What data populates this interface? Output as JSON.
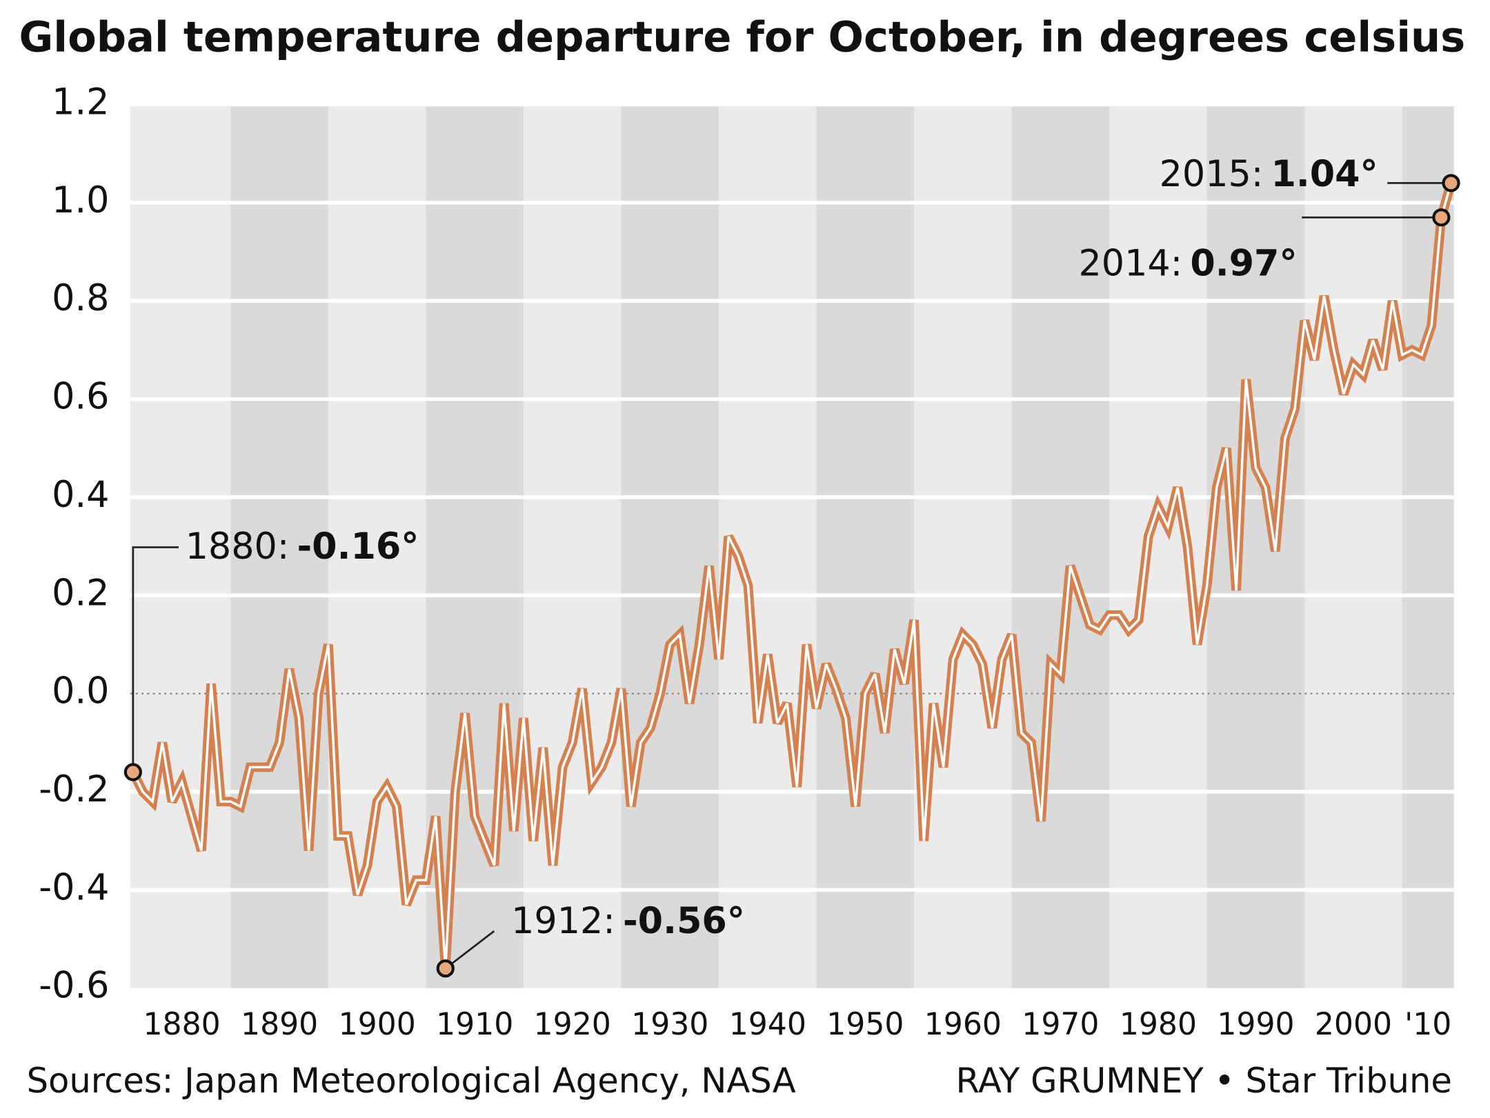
{
  "chart_data": {
    "type": "line",
    "title": "Global temperature departure for October, in degrees celsius",
    "source": "Sources:  Japan Meteorological Agency, NASA",
    "credit": "RAY GRUMNEY • Star Tribune",
    "x": [
      1880,
      1881,
      1882,
      1883,
      1884,
      1885,
      1886,
      1887,
      1888,
      1889,
      1890,
      1891,
      1892,
      1893,
      1894,
      1895,
      1896,
      1897,
      1898,
      1899,
      1900,
      1901,
      1902,
      1903,
      1904,
      1905,
      1906,
      1907,
      1908,
      1909,
      1910,
      1911,
      1912,
      1913,
      1914,
      1915,
      1916,
      1917,
      1918,
      1919,
      1920,
      1921,
      1922,
      1923,
      1924,
      1925,
      1926,
      1927,
      1928,
      1929,
      1930,
      1931,
      1932,
      1933,
      1934,
      1935,
      1936,
      1937,
      1938,
      1939,
      1940,
      1941,
      1942,
      1943,
      1944,
      1945,
      1946,
      1947,
      1948,
      1949,
      1950,
      1951,
      1952,
      1953,
      1954,
      1955,
      1956,
      1957,
      1958,
      1959,
      1960,
      1961,
      1962,
      1963,
      1964,
      1965,
      1966,
      1967,
      1968,
      1969,
      1970,
      1971,
      1972,
      1973,
      1974,
      1975,
      1976,
      1977,
      1978,
      1979,
      1980,
      1981,
      1982,
      1983,
      1984,
      1985,
      1986,
      1987,
      1988,
      1989,
      1990,
      1991,
      1992,
      1993,
      1994,
      1995,
      1996,
      1997,
      1998,
      1999,
      2000,
      2001,
      2002,
      2003,
      2004,
      2005,
      2006,
      2007,
      2008,
      2009,
      2010,
      2011,
      2012,
      2013,
      2014,
      2015
    ],
    "series": [
      {
        "name": "October departure",
        "color": "#d4804f",
        "values": [
          -0.16,
          -0.2,
          -0.22,
          -0.1,
          -0.22,
          -0.18,
          -0.25,
          -0.32,
          0.02,
          -0.22,
          -0.22,
          -0.23,
          -0.15,
          -0.15,
          -0.15,
          -0.1,
          0.05,
          -0.05,
          -0.32,
          0.0,
          0.1,
          -0.29,
          -0.29,
          -0.41,
          -0.35,
          -0.22,
          -0.19,
          -0.23,
          -0.43,
          -0.38,
          -0.38,
          -0.25,
          -0.56,
          -0.2,
          -0.04,
          -0.25,
          -0.3,
          -0.35,
          -0.02,
          -0.28,
          -0.05,
          -0.3,
          -0.11,
          -0.35,
          -0.15,
          -0.1,
          0.01,
          -0.18,
          -0.15,
          -0.1,
          0.01,
          -0.23,
          -0.1,
          -0.07,
          0.0,
          0.1,
          0.12,
          -0.02,
          0.1,
          0.26,
          0.07,
          0.32,
          0.28,
          0.22,
          -0.06,
          0.08,
          -0.06,
          -0.02,
          -0.19,
          0.1,
          -0.03,
          0.06,
          0.01,
          -0.05,
          -0.23,
          0.0,
          0.04,
          -0.08,
          0.09,
          0.02,
          0.15,
          -0.3,
          -0.02,
          -0.15,
          0.07,
          0.12,
          0.1,
          0.06,
          -0.07,
          0.07,
          0.12,
          -0.08,
          -0.1,
          -0.26,
          0.06,
          0.04,
          0.26,
          0.2,
          0.14,
          0.13,
          0.16,
          0.16,
          0.13,
          0.15,
          0.32,
          0.38,
          0.34,
          0.42,
          0.3,
          0.1,
          0.22,
          0.42,
          0.5,
          0.21,
          0.64,
          0.46,
          0.42,
          0.29,
          0.52,
          0.58,
          0.76,
          0.68,
          0.81,
          0.7,
          0.61,
          0.67,
          0.65,
          0.72,
          0.66,
          0.8,
          0.69,
          0.7,
          0.69,
          0.75,
          0.97,
          1.04
        ]
      }
    ],
    "annotations": [
      {
        "label": "1880:",
        "value_label": "-0.16°",
        "x": 1880,
        "y": -0.16
      },
      {
        "label": "1912:",
        "value_label": "-0.56°",
        "x": 1912,
        "y": -0.56
      },
      {
        "label": "2014:",
        "value_label": "0.97°",
        "x": 2014,
        "y": 0.97
      },
      {
        "label": "2015:",
        "value_label": "1.04°",
        "x": 2015,
        "y": 1.04
      }
    ],
    "xlim": [
      1880,
      2015
    ],
    "xticks": [
      1880,
      1890,
      1900,
      1910,
      1920,
      1930,
      1940,
      1950,
      1960,
      1970,
      1980,
      1990,
      2000,
      {
        "value": 2010,
        "label": "'10"
      }
    ],
    "ylim": [
      -0.6,
      1.2
    ],
    "yticks": [
      {
        "value": -0.6,
        "label": "-0.6"
      },
      {
        "value": -0.4,
        "label": "-0.4"
      },
      {
        "value": -0.2,
        "label": "-0.2"
      },
      {
        "value": 0,
        "label": "0.0"
      },
      {
        "value": 0.2,
        "label": "0.2"
      },
      {
        "value": 0.4,
        "label": "0.4"
      },
      {
        "value": 0.6,
        "label": "0.6"
      },
      {
        "value": 0.8,
        "label": "0.8"
      },
      {
        "value": 1,
        "label": "1.0"
      },
      {
        "value": 1.2,
        "label": "1.2"
      }
    ],
    "grid": true
  }
}
